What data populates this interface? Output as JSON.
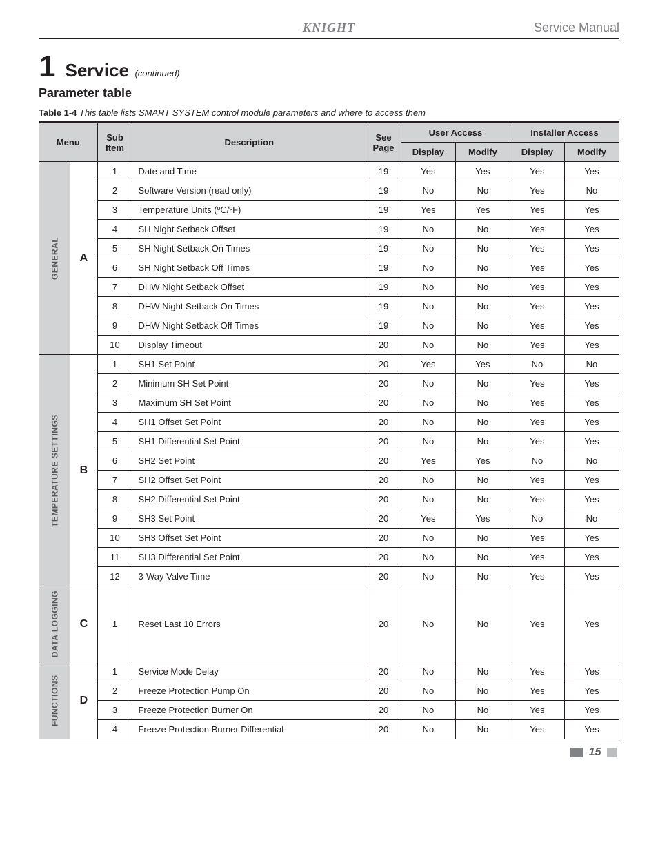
{
  "header": {
    "brand": "KNIGHT",
    "manual_title": "Service Manual"
  },
  "section": {
    "number": "1",
    "title": "Service",
    "continued": "(continued)"
  },
  "subheading": "Parameter table",
  "caption_bold": "Table 1-4",
  "caption_rest": " This table lists SMART SYSTEM control module parameters and where to access them",
  "page_number": "15",
  "columns": {
    "menu": "Menu",
    "sub_item": "Sub Item",
    "description": "Description",
    "see_page": "See Page",
    "user_access": "User Access",
    "installer_access": "Installer Access",
    "display": "Display",
    "modify": "Modify"
  },
  "groups": [
    {
      "menu": "GENERAL",
      "letter": "A",
      "rows": [
        {
          "n": "1",
          "desc": "Date and Time",
          "page": "19",
          "ud": "Yes",
          "um": "Yes",
          "id": "Yes",
          "im": "Yes"
        },
        {
          "n": "2",
          "desc": "Software Version (read only)",
          "page": "19",
          "ud": "No",
          "um": "No",
          "id": "Yes",
          "im": "No"
        },
        {
          "n": "3",
          "desc": "Temperature Units (ºC/ºF)",
          "page": "19",
          "ud": "Yes",
          "um": "Yes",
          "id": "Yes",
          "im": "Yes"
        },
        {
          "n": "4",
          "desc": "SH Night Setback Offset",
          "page": "19",
          "ud": "No",
          "um": "No",
          "id": "Yes",
          "im": "Yes"
        },
        {
          "n": "5",
          "desc": "SH Night Setback On Times",
          "page": "19",
          "ud": "No",
          "um": "No",
          "id": "Yes",
          "im": "Yes"
        },
        {
          "n": "6",
          "desc": "SH Night Setback Off Times",
          "page": "19",
          "ud": "No",
          "um": "No",
          "id": "Yes",
          "im": "Yes"
        },
        {
          "n": "7",
          "desc": "DHW Night Setback Offset",
          "page": "19",
          "ud": "No",
          "um": "No",
          "id": "Yes",
          "im": "Yes"
        },
        {
          "n": "8",
          "desc": "DHW Night Setback On Times",
          "page": "19",
          "ud": "No",
          "um": "No",
          "id": "Yes",
          "im": "Yes"
        },
        {
          "n": "9",
          "desc": "DHW Night Setback Off Times",
          "page": "19",
          "ud": "No",
          "um": "No",
          "id": "Yes",
          "im": "Yes"
        },
        {
          "n": "10",
          "desc": "Display Timeout",
          "page": "20",
          "ud": "No",
          "um": "No",
          "id": "Yes",
          "im": "Yes"
        }
      ]
    },
    {
      "menu": "TEMPERATURE SETTINGS",
      "letter": "B",
      "rows": [
        {
          "n": "1",
          "desc": "SH1 Set Point",
          "page": "20",
          "ud": "Yes",
          "um": "Yes",
          "id": "No",
          "im": "No"
        },
        {
          "n": "2",
          "desc": "Minimum SH Set Point",
          "page": "20",
          "ud": "No",
          "um": "No",
          "id": "Yes",
          "im": "Yes"
        },
        {
          "n": "3",
          "desc": "Maximum SH Set Point",
          "page": "20",
          "ud": "No",
          "um": "No",
          "id": "Yes",
          "im": "Yes"
        },
        {
          "n": "4",
          "desc": "SH1 Offset Set Point",
          "page": "20",
          "ud": "No",
          "um": "No",
          "id": "Yes",
          "im": "Yes"
        },
        {
          "n": "5",
          "desc": "SH1 Differential Set Point",
          "page": "20",
          "ud": "No",
          "um": "No",
          "id": "Yes",
          "im": "Yes"
        },
        {
          "n": "6",
          "desc": "SH2 Set Point",
          "page": "20",
          "ud": "Yes",
          "um": "Yes",
          "id": "No",
          "im": "No"
        },
        {
          "n": "7",
          "desc": "SH2 Offset Set Point",
          "page": "20",
          "ud": "No",
          "um": "No",
          "id": "Yes",
          "im": "Yes"
        },
        {
          "n": "8",
          "desc": "SH2 Differential Set Point",
          "page": "20",
          "ud": "No",
          "um": "No",
          "id": "Yes",
          "im": "Yes"
        },
        {
          "n": "9",
          "desc": "SH3 Set Point",
          "page": "20",
          "ud": "Yes",
          "um": "Yes",
          "id": "No",
          "im": "No"
        },
        {
          "n": "10",
          "desc": "SH3 Offset Set Point",
          "page": "20",
          "ud": "No",
          "um": "No",
          "id": "Yes",
          "im": "Yes"
        },
        {
          "n": "11",
          "desc": "SH3 Differential Set Point",
          "page": "20",
          "ud": "No",
          "um": "No",
          "id": "Yes",
          "im": "Yes"
        },
        {
          "n": "12",
          "desc": "3-Way Valve Time",
          "page": "20",
          "ud": "No",
          "um": "No",
          "id": "Yes",
          "im": "Yes"
        }
      ]
    },
    {
      "menu": "DATA LOGGING",
      "letter": "C",
      "rows": [
        {
          "n": "1",
          "desc": "Reset Last 10 Errors",
          "page": "20",
          "ud": "No",
          "um": "No",
          "id": "Yes",
          "im": "Yes"
        }
      ]
    },
    {
      "menu": "FUNCTIONS",
      "letter": "D",
      "rows": [
        {
          "n": "1",
          "desc": "Service Mode Delay",
          "page": "20",
          "ud": "No",
          "um": "No",
          "id": "Yes",
          "im": "Yes"
        },
        {
          "n": "2",
          "desc": "Freeze Protection Pump On",
          "page": "20",
          "ud": "No",
          "um": "No",
          "id": "Yes",
          "im": "Yes"
        },
        {
          "n": "3",
          "desc": "Freeze Protection Burner On",
          "page": "20",
          "ud": "No",
          "um": "No",
          "id": "Yes",
          "im": "Yes"
        },
        {
          "n": "4",
          "desc": "Freeze Protection Burner Differential",
          "page": "20",
          "ud": "No",
          "um": "No",
          "id": "Yes",
          "im": "Yes"
        }
      ]
    }
  ],
  "style": {
    "header_bg": "#d1d3d4",
    "border_color": "#231f20",
    "text_color": "#231f20",
    "muted_text": "#58595b",
    "body_font_size": 13,
    "col_widths": {
      "menu": 45,
      "letter": 40,
      "sub": 45,
      "desc": 300,
      "page": 45,
      "access": 75
    }
  }
}
